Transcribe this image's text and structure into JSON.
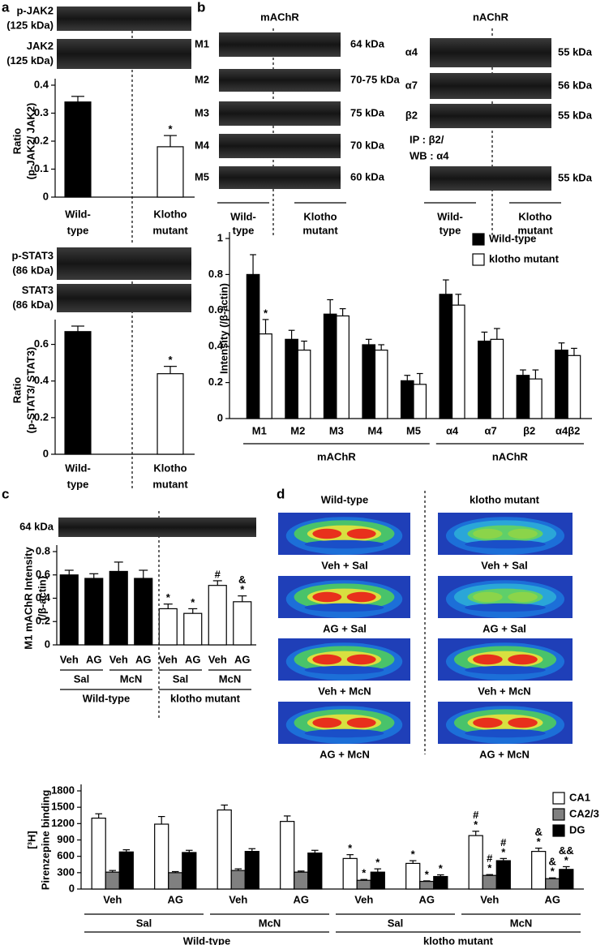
{
  "panel_labels": [
    "a",
    "b",
    "c",
    "d"
  ],
  "panel_b_blots": {
    "mAChR": {
      "title": "mAChR",
      "blots": [
        {
          "name": "M1",
          "size": "64 kDa"
        },
        {
          "name": "M2",
          "size": "70-75 kDa"
        },
        {
          "name": "M3",
          "size": "75 kDa"
        },
        {
          "name": "M4",
          "size": "70 kDa"
        },
        {
          "name": "M5",
          "size": "60 kDa"
        }
      ],
      "categories": [
        [
          "Wild-",
          "type"
        ],
        [
          "Klotho",
          "mutant"
        ]
      ]
    },
    "nAChR": {
      "title": "nAChR",
      "blots": [
        {
          "name": "α4",
          "size": "55 kDa"
        },
        {
          "name": "α7",
          "size": "56 kDa"
        },
        {
          "name": "β2",
          "size": "55 kDa"
        },
        {
          "name": [
            "IP : β2/",
            "WB : α4"
          ],
          "size": "55 kDa"
        }
      ],
      "categories": [
        [
          "Wild-",
          "type"
        ],
        [
          "Klotho",
          "mutant"
        ]
      ]
    }
  },
  "panel_d": {
    "columns": [
      "Wild-type",
      "klotho mutant"
    ],
    "rows": [
      "Veh + Sal",
      "AG + Sal",
      "Veh + McN",
      "AG + McN"
    ]
  },
  "chart_data": [
    {
      "type": "bar",
      "blots": [
        [
          "p-JAK2",
          "(125 kDa)"
        ],
        [
          "JAK2",
          "(125 kDa)"
        ]
      ],
      "y_label": [
        "Ratio",
        "(p-JAK2/ JAK2)"
      ],
      "categories": [
        [
          "Wild-",
          "type"
        ],
        [
          "Klotho",
          "mutant"
        ]
      ],
      "values": [
        0.34,
        0.18
      ],
      "errors": [
        0.02,
        0.04
      ],
      "colors": [
        "#000000",
        "#ffffff"
      ],
      "annotations": [
        null,
        [
          "*"
        ]
      ],
      "ylim": [
        0,
        0.4
      ],
      "yticks": [
        0,
        0.1,
        0.2,
        0.3,
        0.4
      ]
    },
    {
      "type": "bar",
      "blots": [
        [
          "p-STAT3",
          "(86 kDa)"
        ],
        [
          "STAT3",
          "(86 kDa)"
        ]
      ],
      "y_label": [
        "Ratio",
        "(p-STAT3/ STAT3)"
      ],
      "categories": [
        [
          "Wild-",
          "type"
        ],
        [
          "Klotho",
          "mutant"
        ]
      ],
      "values": [
        0.67,
        0.44
      ],
      "errors": [
        0.03,
        0.04
      ],
      "colors": [
        "#000000",
        "#ffffff"
      ],
      "annotations": [
        null,
        [
          "*"
        ]
      ],
      "ylim": [
        0,
        0.7
      ],
      "yticks": [
        0,
        0.2,
        0.4,
        0.6
      ]
    },
    {
      "type": "bar",
      "y_label": [
        "Intensity (/β-actin)"
      ],
      "category_groups": [
        {
          "name": "mAChR",
          "categories": [
            "M1",
            "M2",
            "M3",
            "M4",
            "M5"
          ]
        },
        {
          "name": "nAChR",
          "categories": [
            "α4",
            "α7",
            "β2",
            "α4β2"
          ]
        }
      ],
      "series": [
        {
          "name": "Wild-type",
          "color": "#000000",
          "values": [
            0.8,
            0.44,
            0.58,
            0.41,
            0.21,
            0.69,
            0.43,
            0.24,
            0.38
          ],
          "errors": [
            0.11,
            0.05,
            0.08,
            0.03,
            0.03,
            0.08,
            0.05,
            0.03,
            0.04
          ]
        },
        {
          "name": "klotho mutant",
          "color": "#ffffff",
          "values": [
            0.47,
            0.38,
            0.57,
            0.38,
            0.19,
            0.63,
            0.44,
            0.22,
            0.35
          ],
          "errors": [
            0.08,
            0.05,
            0.04,
            0.03,
            0.06,
            0.06,
            0.06,
            0.05,
            0.04
          ],
          "annotations": [
            [
              "*"
            ],
            null,
            null,
            null,
            null,
            null,
            null,
            null,
            null
          ]
        }
      ],
      "ylim": [
        0,
        1
      ],
      "yticks": [
        0,
        0.2,
        0.4,
        0.6,
        0.8,
        1
      ]
    },
    {
      "type": "bar",
      "blots": [
        "64 kDa"
      ],
      "y_label": [
        "M1 mAChR Intensity",
        "(/β-actin)"
      ],
      "category_groups": [
        {
          "name": "Wild-type",
          "groups": [
            {
              "name": "Sal",
              "categories": [
                "Veh",
                "AG"
              ]
            },
            {
              "name": "McN",
              "categories": [
                "Veh",
                "AG"
              ]
            }
          ]
        },
        {
          "name": "klotho mutant",
          "groups": [
            {
              "name": "Sal",
              "categories": [
                "Veh",
                "AG"
              ]
            },
            {
              "name": "McN",
              "categories": [
                "Veh",
                "AG"
              ]
            }
          ]
        }
      ],
      "values": [
        0.6,
        0.57,
        0.63,
        0.57,
        0.31,
        0.27,
        0.51,
        0.37
      ],
      "errors": [
        0.04,
        0.04,
        0.08,
        0.07,
        0.04,
        0.04,
        0.04,
        0.05
      ],
      "colors": [
        "#000000",
        "#000000",
        "#000000",
        "#000000",
        "#ffffff",
        "#ffffff",
        "#ffffff",
        "#ffffff"
      ],
      "annotations": [
        null,
        null,
        null,
        null,
        [
          "*"
        ],
        [
          "*"
        ],
        [
          "#"
        ],
        [
          "&",
          "*"
        ]
      ],
      "ylim": [
        0,
        0.8
      ],
      "yticks": [
        0,
        0.2,
        0.4,
        0.6,
        0.8
      ]
    },
    {
      "type": "bar",
      "y_label": [
        "[³H]",
        "Pirenzepine binding"
      ],
      "category_groups": [
        {
          "name": "Wild-type",
          "groups": [
            {
              "name": "Sal",
              "categories": [
                "Veh",
                "AG"
              ]
            },
            {
              "name": "McN",
              "categories": [
                "Veh",
                "AG"
              ]
            }
          ]
        },
        {
          "name": "klotho mutant",
          "groups": [
            {
              "name": "Sal",
              "categories": [
                "Veh",
                "AG"
              ]
            },
            {
              "name": "McN",
              "categories": [
                "Veh",
                "AG"
              ]
            }
          ]
        }
      ],
      "series": [
        {
          "name": "CA1",
          "color": "#ffffff",
          "values": [
            1300,
            1190,
            1450,
            1240,
            560,
            470,
            980,
            690
          ],
          "errors": [
            80,
            140,
            90,
            100,
            70,
            50,
            80,
            60
          ],
          "annotations": [
            null,
            null,
            null,
            null,
            [
              "*"
            ],
            [
              "*"
            ],
            [
              "#",
              "*"
            ],
            [
              "&",
              "*"
            ]
          ]
        },
        {
          "name": "CA2/3",
          "color": "#808080",
          "values": [
            310,
            300,
            340,
            310,
            160,
            140,
            250,
            190
          ],
          "errors": [
            30,
            20,
            30,
            20,
            15,
            10,
            15,
            15
          ],
          "annotations": [
            null,
            null,
            null,
            null,
            [
              "*"
            ],
            [
              "*"
            ],
            [
              "#",
              "*"
            ],
            [
              "&",
              "*"
            ]
          ]
        },
        {
          "name": "DG",
          "color": "#000000",
          "values": [
            680,
            670,
            690,
            660,
            310,
            230,
            520,
            360
          ],
          "errors": [
            40,
            40,
            50,
            50,
            60,
            30,
            40,
            50
          ],
          "annotations": [
            null,
            null,
            null,
            null,
            [
              "*"
            ],
            [
              "*"
            ],
            [
              "#",
              "*"
            ],
            [
              "&&",
              "*"
            ]
          ]
        }
      ],
      "ylim": [
        0,
        1800
      ],
      "yticks": [
        0,
        300,
        600,
        900,
        1200,
        1500,
        1800
      ]
    }
  ]
}
